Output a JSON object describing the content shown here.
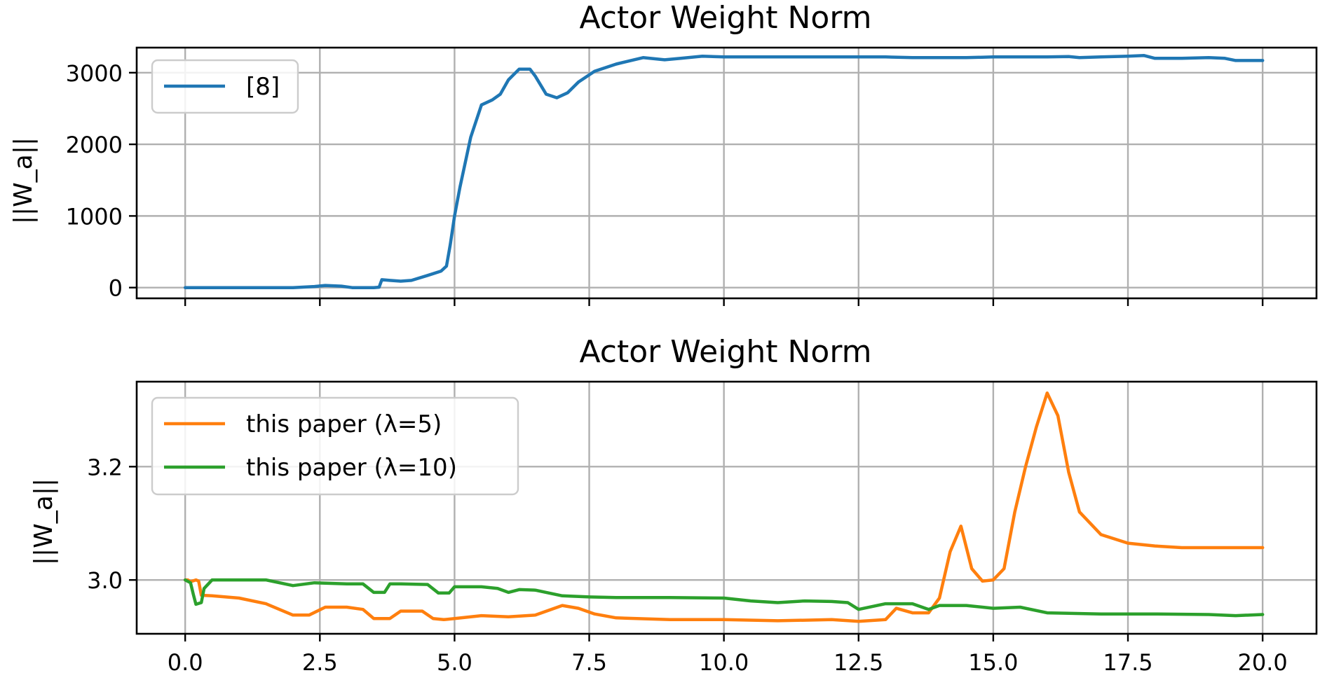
{
  "chart_data": [
    {
      "type": "line",
      "title": "Actor Weight Norm",
      "xlabel": "",
      "ylabel": "||W_a||",
      "xlim": [
        -0.9,
        21.0
      ],
      "ylim": [
        -150,
        3350
      ],
      "xticks": [
        0.0,
        2.5,
        5.0,
        7.5,
        10.0,
        12.5,
        15.0,
        17.5,
        20.0
      ],
      "xtick_labels_visible": false,
      "yticks": [
        0,
        1000,
        2000,
        3000
      ],
      "ytick_labels": [
        "0",
        "1000",
        "2000",
        "3000"
      ],
      "grid": true,
      "legend": "top-left",
      "series": [
        {
          "name": "[8]",
          "color": "#1f77b4",
          "x": [
            0.0,
            1.0,
            2.0,
            2.4,
            2.6,
            2.9,
            3.1,
            3.5,
            3.6,
            3.65,
            3.8,
            4.0,
            4.2,
            4.5,
            4.75,
            4.85,
            4.92,
            5.0,
            5.1,
            5.3,
            5.5,
            5.7,
            5.85,
            6.0,
            6.2,
            6.4,
            6.5,
            6.7,
            6.9,
            7.1,
            7.3,
            7.6,
            8.0,
            8.5,
            8.9,
            9.2,
            9.6,
            10.0,
            11.0,
            12.0,
            13.0,
            13.5,
            14.0,
            14.5,
            15.0,
            16.0,
            16.4,
            16.6,
            17.0,
            17.5,
            17.8,
            18.0,
            18.5,
            19.0,
            19.3,
            19.5,
            20.0
          ],
          "y": [
            0,
            0,
            0,
            15,
            30,
            20,
            0,
            0,
            5,
            110,
            100,
            90,
            100,
            170,
            230,
            300,
            600,
            1000,
            1400,
            2100,
            2550,
            2620,
            2700,
            2900,
            3050,
            3050,
            2950,
            2700,
            2650,
            2720,
            2870,
            3020,
            3120,
            3210,
            3180,
            3200,
            3230,
            3220,
            3220,
            3220,
            3220,
            3210,
            3210,
            3210,
            3220,
            3220,
            3225,
            3210,
            3220,
            3230,
            3240,
            3200,
            3200,
            3210,
            3200,
            3170,
            3170
          ]
        }
      ]
    },
    {
      "type": "line",
      "title": "Actor Weight Norm",
      "xlabel": "",
      "ylabel": "||W_a||",
      "xlim": [
        -0.9,
        21.0
      ],
      "ylim": [
        2.905,
        3.35
      ],
      "xticks": [
        0.0,
        2.5,
        5.0,
        7.5,
        10.0,
        12.5,
        15.0,
        17.5,
        20.0
      ],
      "xtick_labels": [
        "0.0",
        "2.5",
        "5.0",
        "7.5",
        "10.0",
        "12.5",
        "15.0",
        "17.5",
        "20.0"
      ],
      "yticks": [
        3.0,
        3.2
      ],
      "ytick_labels": [
        "3.0",
        "3.2"
      ],
      "grid": true,
      "legend": "top-left",
      "series": [
        {
          "name": "this paper (λ=5)",
          "color": "#ff7f0e",
          "x": [
            0.0,
            0.05,
            0.1,
            0.2,
            0.25,
            0.3,
            0.5,
            1.0,
            1.5,
            2.0,
            2.3,
            2.6,
            3.0,
            3.3,
            3.5,
            3.8,
            4.0,
            4.2,
            4.4,
            4.6,
            4.8,
            5.0,
            5.5,
            6.0,
            6.5,
            7.0,
            7.3,
            7.6,
            8.0,
            9.0,
            10.0,
            11.0,
            12.0,
            12.5,
            13.0,
            13.2,
            13.5,
            13.8,
            14.0,
            14.2,
            14.4,
            14.6,
            14.8,
            15.0,
            15.2,
            15.4,
            15.6,
            15.8,
            16.0,
            16.2,
            16.4,
            16.6,
            17.0,
            17.5,
            18.0,
            18.5,
            19.0,
            20.0
          ],
          "y": [
            3.0,
            3.0,
            2.997,
            3.0,
            2.998,
            2.973,
            2.972,
            2.968,
            2.958,
            2.938,
            2.938,
            2.952,
            2.952,
            2.948,
            2.932,
            2.932,
            2.945,
            2.945,
            2.945,
            2.932,
            2.93,
            2.932,
            2.937,
            2.935,
            2.938,
            2.955,
            2.95,
            2.94,
            2.933,
            2.93,
            2.93,
            2.928,
            2.93,
            2.927,
            2.93,
            2.95,
            2.942,
            2.942,
            2.968,
            3.05,
            3.095,
            3.02,
            2.998,
            3.0,
            3.02,
            3.12,
            3.2,
            3.27,
            3.33,
            3.29,
            3.19,
            3.12,
            3.08,
            3.065,
            3.06,
            3.057,
            3.057,
            3.057
          ]
        },
        {
          "name": "this paper (λ=10)",
          "color": "#2ca02c",
          "x": [
            0.0,
            0.1,
            0.15,
            0.2,
            0.3,
            0.35,
            0.5,
            1.0,
            1.5,
            2.0,
            2.4,
            3.0,
            3.3,
            3.5,
            3.7,
            3.8,
            4.0,
            4.5,
            4.7,
            4.9,
            5.0,
            5.5,
            5.8,
            6.0,
            6.2,
            6.5,
            7.0,
            7.5,
            8.0,
            9.0,
            10.0,
            10.5,
            11.0,
            11.5,
            12.0,
            12.3,
            12.5,
            13.0,
            13.5,
            13.8,
            14.0,
            14.5,
            15.0,
            15.5,
            16.0,
            17.0,
            18.0,
            19.0,
            19.5,
            20.0
          ],
          "y": [
            3.0,
            2.995,
            2.975,
            2.957,
            2.96,
            2.985,
            3.0,
            3.0,
            3.0,
            2.99,
            2.995,
            2.993,
            2.993,
            2.978,
            2.978,
            2.993,
            2.993,
            2.992,
            2.977,
            2.977,
            2.988,
            2.988,
            2.985,
            2.978,
            2.983,
            2.982,
            2.972,
            2.97,
            2.969,
            2.969,
            2.968,
            2.963,
            2.96,
            2.963,
            2.962,
            2.96,
            2.948,
            2.958,
            2.958,
            2.948,
            2.955,
            2.955,
            2.95,
            2.952,
            2.942,
            2.94,
            2.94,
            2.939,
            2.937,
            2.939
          ]
        }
      ]
    }
  ]
}
